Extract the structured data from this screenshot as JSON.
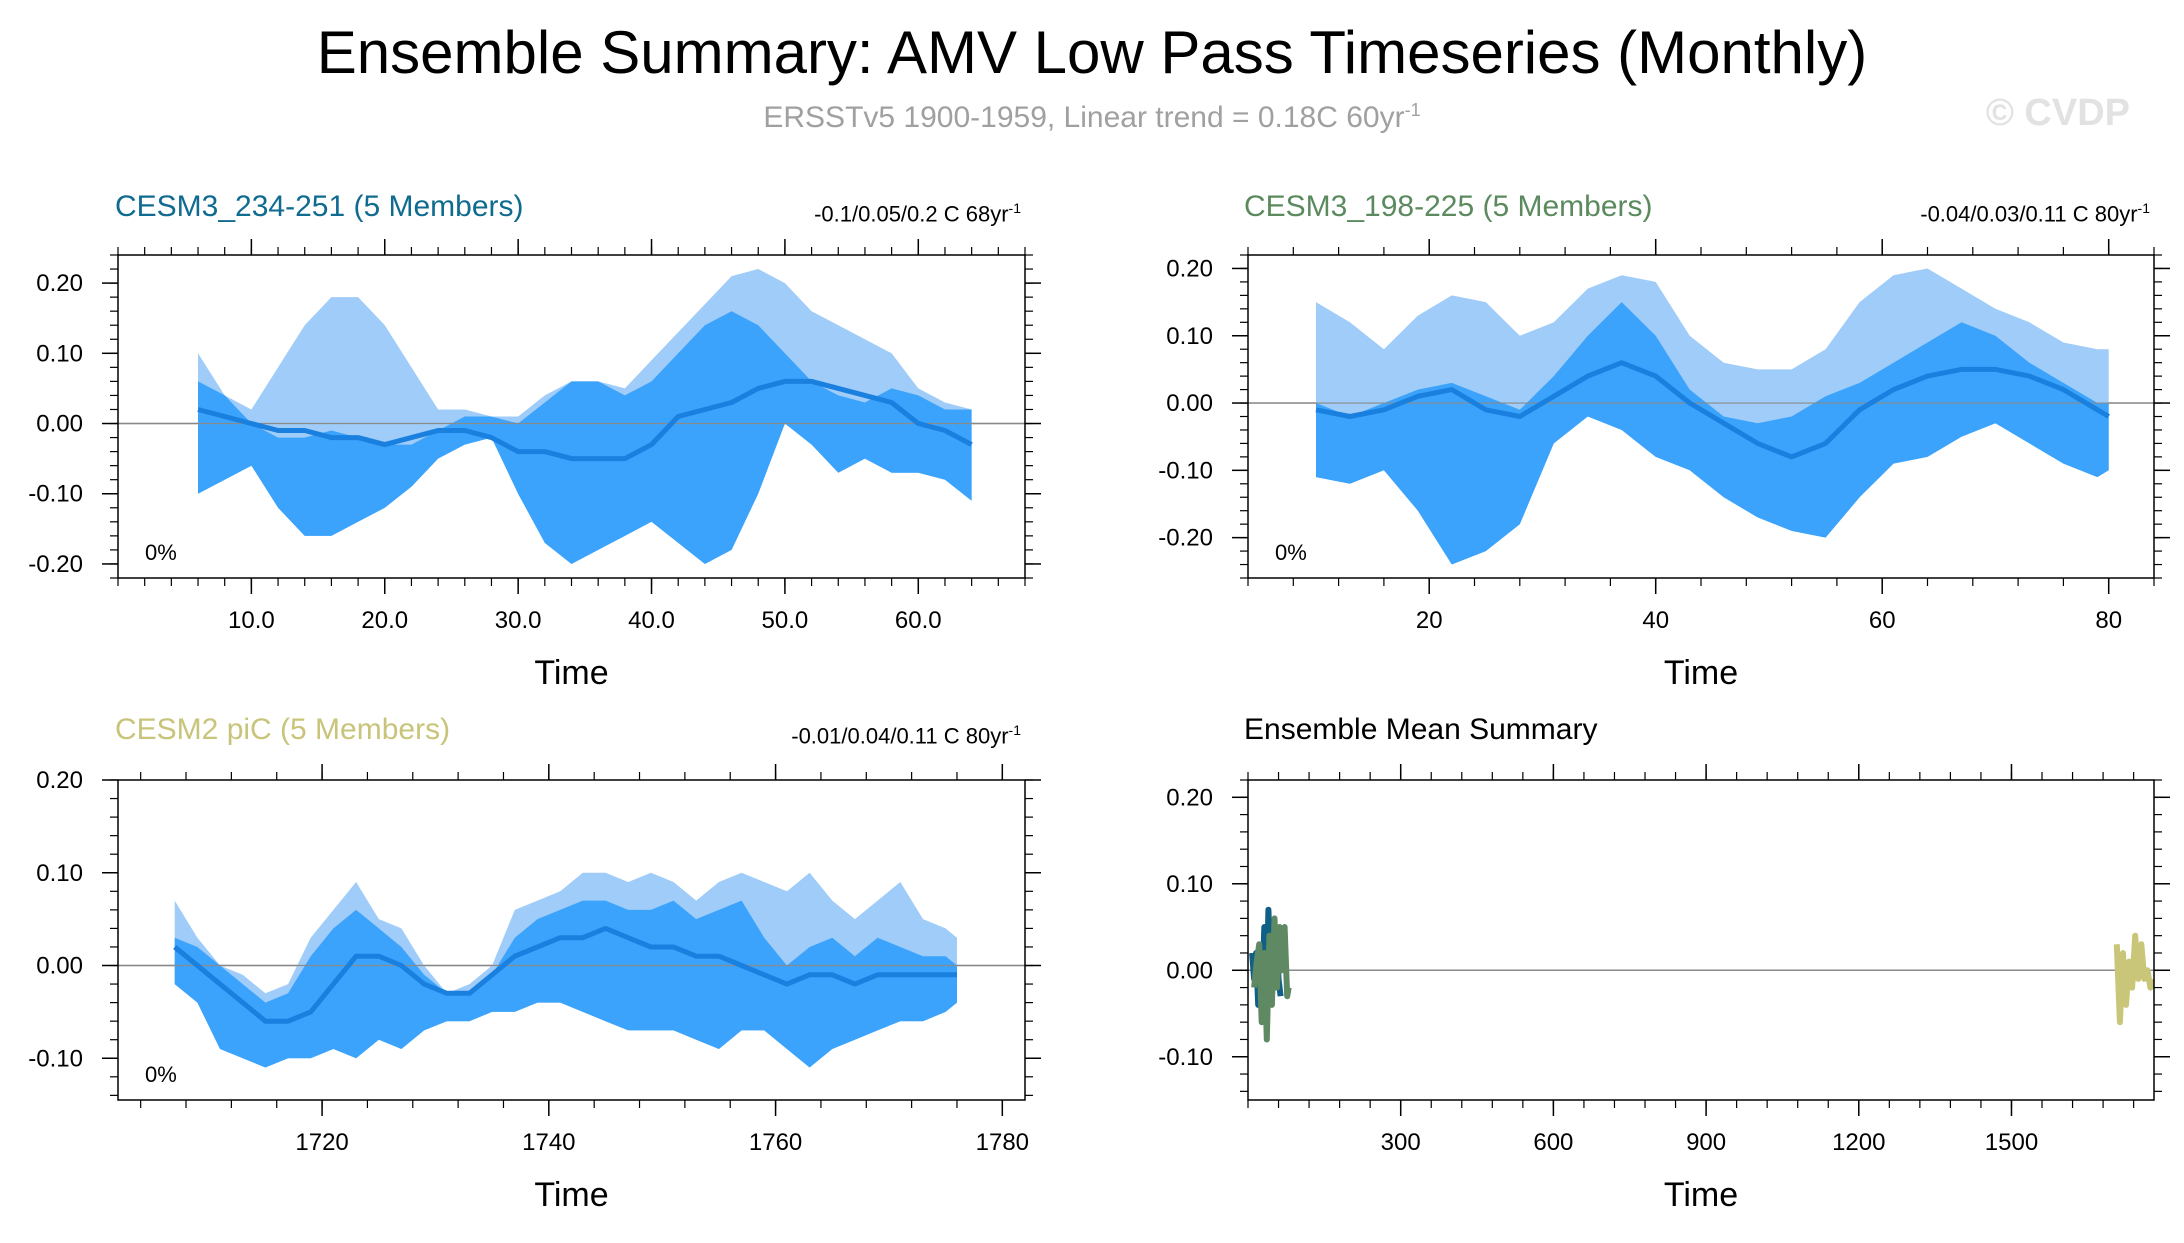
{
  "title": "Ensemble Summary: AMV Low Pass Timeseries (Monthly)",
  "subtitle": "ERSSTv5 1900-1959, Linear trend = 0.18C 60yr",
  "subtitle_sup": "-1",
  "watermark": "© CVDP",
  "colors": {
    "band_light": "#9fccf9",
    "band_dark": "#3ba3fb",
    "mean_line": "#1a80e0",
    "zero_line": "#8a8a8a"
  },
  "panels": [
    {
      "title": "CESM3_234-251 (5 Members)",
      "title_color": "#0f6b8f",
      "stats": "-0.1/0.05/0.2 C 68yr",
      "stats_sup": "-1",
      "pct": "0%",
      "xlabel": "Time"
    },
    {
      "title": "CESM3_198-225 (5 Members)",
      "title_color": "#5b8a5f",
      "stats": "-0.04/0.03/0.11 C 80yr",
      "stats_sup": "-1",
      "pct": "0%",
      "xlabel": "Time"
    },
    {
      "title": "CESM2 piC (5 Members)",
      "title_color": "#c8c47a",
      "stats": "-0.01/0.04/0.11 C 80yr",
      "stats_sup": "-1",
      "pct": "0%",
      "xlabel": "Time"
    },
    {
      "title": "Ensemble Mean Summary",
      "title_color": "#000000",
      "stats": "",
      "stats_sup": "",
      "pct": "",
      "xlabel": "Time"
    }
  ],
  "chart_data": [
    {
      "type": "area",
      "title": "CESM3_234-251 (5 Members)",
      "xlabel": "Time",
      "ylabel": "",
      "xlim": [
        0,
        68
      ],
      "ylim": [
        -0.22,
        0.24
      ],
      "xticks": [
        10,
        20,
        30,
        40,
        50,
        60
      ],
      "xtick_labels": [
        "10.0",
        "20.0",
        "30.0",
        "40.0",
        "50.0",
        "60.0"
      ],
      "yticks": [
        -0.2,
        -0.1,
        0,
        0.1,
        0.2
      ],
      "ytick_labels": [
        "-0.20",
        "-0.10",
        "0.00",
        "0.10",
        "0.20"
      ],
      "x": [
        6,
        8,
        10,
        12,
        14,
        16,
        18,
        20,
        22,
        24,
        26,
        28,
        30,
        32,
        34,
        36,
        38,
        40,
        42,
        44,
        46,
        48,
        50,
        52,
        54,
        56,
        58,
        60,
        62,
        64
      ],
      "max": [
        0.1,
        0.04,
        0.02,
        0.08,
        0.14,
        0.18,
        0.18,
        0.14,
        0.08,
        0.02,
        0.02,
        0.01,
        0.01,
        0.04,
        0.06,
        0.06,
        0.05,
        0.09,
        0.13,
        0.17,
        0.21,
        0.22,
        0.2,
        0.16,
        0.14,
        0.12,
        0.1,
        0.05,
        0.03,
        0.02
      ],
      "upper": [
        0.06,
        0.04,
        0.0,
        -0.02,
        -0.02,
        -0.01,
        -0.02,
        -0.03,
        -0.03,
        -0.01,
        0.01,
        0.01,
        0.0,
        0.03,
        0.06,
        0.06,
        0.04,
        0.06,
        0.1,
        0.14,
        0.16,
        0.14,
        0.1,
        0.06,
        0.04,
        0.03,
        0.05,
        0.04,
        0.02,
        0.02
      ],
      "lower": [
        -0.1,
        -0.08,
        -0.06,
        -0.12,
        -0.16,
        -0.16,
        -0.14,
        -0.12,
        -0.09,
        -0.05,
        -0.03,
        -0.02,
        -0.1,
        -0.17,
        -0.2,
        -0.18,
        -0.16,
        -0.14,
        -0.17,
        -0.2,
        -0.18,
        -0.1,
        0.0,
        -0.03,
        -0.07,
        -0.05,
        -0.07,
        -0.07,
        -0.08,
        -0.11
      ],
      "mean": [
        0.02,
        0.01,
        0.0,
        -0.01,
        -0.01,
        -0.02,
        -0.02,
        -0.03,
        -0.02,
        -0.01,
        -0.01,
        -0.02,
        -0.04,
        -0.04,
        -0.05,
        -0.05,
        -0.05,
        -0.03,
        0.01,
        0.02,
        0.03,
        0.05,
        0.06,
        0.06,
        0.05,
        0.04,
        0.03,
        0.0,
        -0.01,
        -0.03
      ]
    },
    {
      "type": "area",
      "title": "CESM3_198-225 (5 Members)",
      "xlabel": "Time",
      "ylabel": "",
      "xlim": [
        4,
        84
      ],
      "ylim": [
        -0.26,
        0.22
      ],
      "xticks": [
        20,
        40,
        60,
        80
      ],
      "xtick_labels": [
        "20",
        "40",
        "60",
        "80"
      ],
      "yticks": [
        -0.2,
        -0.1,
        0,
        0.1,
        0.2
      ],
      "ytick_labels": [
        "-0.20",
        "-0.10",
        "0.00",
        "0.10",
        "0.20"
      ],
      "x": [
        10,
        13,
        16,
        19,
        22,
        25,
        28,
        31,
        34,
        37,
        40,
        43,
        46,
        49,
        52,
        55,
        58,
        61,
        64,
        67,
        70,
        73,
        76,
        79,
        80
      ],
      "max": [
        0.15,
        0.12,
        0.08,
        0.13,
        0.16,
        0.15,
        0.1,
        0.12,
        0.17,
        0.19,
        0.18,
        0.1,
        0.06,
        0.05,
        0.05,
        0.08,
        0.15,
        0.19,
        0.2,
        0.17,
        0.14,
        0.12,
        0.09,
        0.08,
        0.08
      ],
      "upper": [
        0.0,
        -0.02,
        0.0,
        0.02,
        0.03,
        0.01,
        -0.01,
        0.04,
        0.1,
        0.15,
        0.1,
        0.02,
        -0.02,
        -0.03,
        -0.02,
        0.01,
        0.03,
        0.06,
        0.09,
        0.12,
        0.1,
        0.06,
        0.03,
        0.0,
        0.0
      ],
      "lower": [
        -0.11,
        -0.12,
        -0.1,
        -0.16,
        -0.24,
        -0.22,
        -0.18,
        -0.06,
        -0.02,
        -0.04,
        -0.08,
        -0.1,
        -0.14,
        -0.17,
        -0.19,
        -0.2,
        -0.14,
        -0.09,
        -0.08,
        -0.05,
        -0.03,
        -0.06,
        -0.09,
        -0.11,
        -0.1
      ],
      "mean": [
        -0.01,
        -0.02,
        -0.01,
        0.01,
        0.02,
        -0.01,
        -0.02,
        0.01,
        0.04,
        0.06,
        0.04,
        0.0,
        -0.03,
        -0.06,
        -0.08,
        -0.06,
        -0.01,
        0.02,
        0.04,
        0.05,
        0.05,
        0.04,
        0.02,
        -0.01,
        -0.02
      ]
    },
    {
      "type": "area",
      "title": "CESM2 piC (5 Members)",
      "xlabel": "Time",
      "ylabel": "",
      "xlim": [
        1702,
        1782
      ],
      "ylim": [
        -0.145,
        0.2
      ],
      "xticks": [
        1720,
        1740,
        1760,
        1780
      ],
      "xtick_labels": [
        "1720",
        "1740",
        "1760",
        "1780"
      ],
      "yticks": [
        -0.1,
        0,
        0.1,
        0.2
      ],
      "ytick_labels": [
        "-0.10",
        "0.00",
        "0.10",
        "0.20"
      ],
      "x": [
        1707,
        1709,
        1711,
        1713,
        1715,
        1717,
        1719,
        1721,
        1723,
        1725,
        1727,
        1729,
        1731,
        1733,
        1735,
        1737,
        1739,
        1741,
        1743,
        1745,
        1747,
        1749,
        1751,
        1753,
        1755,
        1757,
        1759,
        1761,
        1763,
        1765,
        1767,
        1769,
        1771,
        1773,
        1775,
        1776
      ],
      "max": [
        0.07,
        0.03,
        0.0,
        -0.01,
        -0.03,
        -0.02,
        0.03,
        0.06,
        0.09,
        0.05,
        0.04,
        0.0,
        -0.03,
        -0.02,
        0.0,
        0.06,
        0.07,
        0.08,
        0.1,
        0.1,
        0.09,
        0.1,
        0.09,
        0.07,
        0.09,
        0.1,
        0.09,
        0.08,
        0.1,
        0.07,
        0.05,
        0.07,
        0.09,
        0.05,
        0.04,
        0.03
      ],
      "upper": [
        0.03,
        0.02,
        0.0,
        -0.02,
        -0.04,
        -0.03,
        0.01,
        0.04,
        0.06,
        0.04,
        0.02,
        -0.01,
        -0.03,
        -0.03,
        -0.01,
        0.03,
        0.05,
        0.06,
        0.07,
        0.07,
        0.06,
        0.06,
        0.07,
        0.05,
        0.06,
        0.07,
        0.03,
        0.0,
        0.02,
        0.03,
        0.01,
        0.03,
        0.02,
        0.01,
        0.01,
        0.0
      ],
      "lower": [
        -0.02,
        -0.04,
        -0.09,
        -0.1,
        -0.11,
        -0.1,
        -0.1,
        -0.09,
        -0.1,
        -0.08,
        -0.09,
        -0.07,
        -0.06,
        -0.06,
        -0.05,
        -0.05,
        -0.04,
        -0.04,
        -0.05,
        -0.06,
        -0.07,
        -0.07,
        -0.07,
        -0.08,
        -0.09,
        -0.07,
        -0.07,
        -0.09,
        -0.11,
        -0.09,
        -0.08,
        -0.07,
        -0.06,
        -0.06,
        -0.05,
        -0.04
      ],
      "mean": [
        0.02,
        0.0,
        -0.02,
        -0.04,
        -0.06,
        -0.06,
        -0.05,
        -0.02,
        0.01,
        0.01,
        0.0,
        -0.02,
        -0.03,
        -0.03,
        -0.01,
        0.01,
        0.02,
        0.03,
        0.03,
        0.04,
        0.03,
        0.02,
        0.02,
        0.01,
        0.01,
        0.0,
        -0.01,
        -0.02,
        -0.01,
        -0.01,
        -0.02,
        -0.01,
        -0.01,
        -0.01,
        -0.01,
        -0.01
      ]
    },
    {
      "type": "line",
      "title": "Ensemble Mean Summary",
      "xlabel": "Time",
      "ylabel": "",
      "xlim": [
        0,
        1780
      ],
      "ylim": [
        -0.15,
        0.22
      ],
      "xticks": [
        300,
        600,
        900,
        1200,
        1500
      ],
      "xtick_labels": [
        "300",
        "600",
        "900",
        "1200",
        "1500"
      ],
      "yticks": [
        -0.1,
        0,
        0.1,
        0.2
      ],
      "ytick_labels": [
        "-0.10",
        "0.00",
        "0.10",
        "0.20"
      ],
      "series": [
        {
          "name": "CESM3_234-251",
          "color": "#0f5f86",
          "x": [
            8,
            12,
            16,
            20,
            24,
            28,
            32,
            36,
            40,
            44,
            48,
            52,
            56,
            60,
            64
          ],
          "y": [
            0.02,
            -0.01,
            0.02,
            -0.04,
            0.01,
            -0.03,
            0.05,
            -0.05,
            0.07,
            0.01,
            0.03,
            -0.02,
            0.05,
            -0.01,
            -0.03
          ]
        },
        {
          "name": "CESM3_198-225",
          "color": "#5e8963",
          "x": [
            12,
            17,
            22,
            27,
            32,
            37,
            42,
            47,
            52,
            57,
            62,
            67,
            72,
            77,
            80
          ],
          "y": [
            -0.02,
            0.01,
            0.03,
            -0.06,
            0.02,
            -0.08,
            0.04,
            -0.04,
            0.06,
            -0.02,
            0.05,
            0.0,
            0.05,
            -0.03,
            -0.02
          ]
        },
        {
          "name": "CESM2 piC",
          "color": "#c9c67a",
          "x": [
            1707,
            1713,
            1719,
            1725,
            1731,
            1737,
            1743,
            1749,
            1755,
            1761,
            1767,
            1773,
            1776
          ],
          "y": [
            0.03,
            -0.06,
            0.02,
            -0.04,
            0.01,
            -0.02,
            0.04,
            -0.01,
            0.03,
            -0.01,
            0.0,
            -0.02,
            -0.01
          ]
        }
      ]
    }
  ]
}
